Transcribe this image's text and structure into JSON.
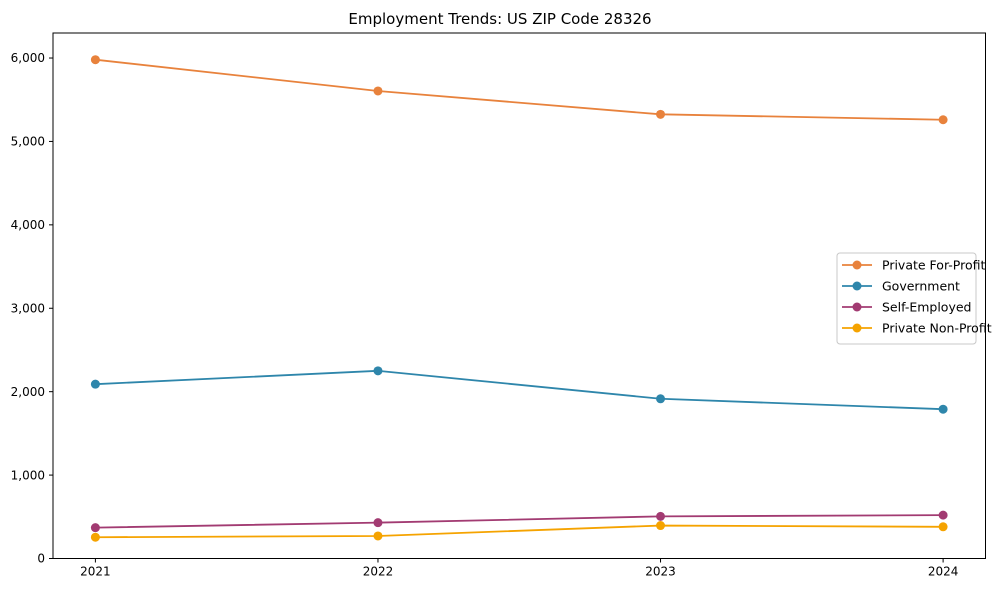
{
  "page": {
    "title": "Employment Trends: US ZIP Code 28326"
  },
  "chart_data": {
    "type": "line",
    "title": "Employment Trends: US ZIP Code 28326",
    "x": [
      2021,
      2022,
      2023,
      2024
    ],
    "xtick_labels": [
      "2021",
      "2022",
      "2023",
      "2024"
    ],
    "series": [
      {
        "name": "Private For-Profit",
        "color": "#E8823C",
        "values": [
          5980,
          5605,
          5325,
          5260
        ]
      },
      {
        "name": "Government",
        "color": "#2E86AB",
        "values": [
          2090,
          2250,
          1915,
          1790
        ]
      },
      {
        "name": "Self-Employed",
        "color": "#A23B72",
        "values": [
          370,
          430,
          505,
          520
        ]
      },
      {
        "name": "Private Non-Profit",
        "color": "#F5A300",
        "values": [
          255,
          270,
          395,
          380
        ]
      }
    ],
    "xlabel": "",
    "ylabel": "",
    "ylim": [
      0,
      6300
    ],
    "yticks": [
      0,
      1000,
      2000,
      3000,
      4000,
      5000,
      6000
    ],
    "ytick_labels": [
      "0",
      "1,000",
      "2,000",
      "3,000",
      "4,000",
      "5,000",
      "6,000"
    ],
    "grid": false,
    "marker": "circle",
    "legend_position": "center right",
    "colors": {
      "spine": "#000000",
      "legend_border": "#c8c8c8",
      "background": "#ffffff"
    }
  }
}
